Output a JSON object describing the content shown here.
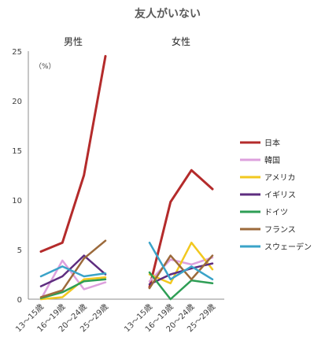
{
  "chart_data": {
    "type": "line",
    "title": "友人がいない",
    "unit_label": "（%）",
    "ylim": [
      0,
      25
    ],
    "yticks": [
      0,
      5,
      10,
      15,
      20,
      25
    ],
    "categories": [
      "13～15歳",
      "16～19歳",
      "20～24歳",
      "25～29歳"
    ],
    "panels": [
      {
        "label": "男性",
        "series": [
          {
            "name": "日本",
            "color": "#B42B2B",
            "values": [
              4.8,
              5.7,
              12.5,
              24.5
            ]
          },
          {
            "name": "韓国",
            "color": "#DDA0DD",
            "values": [
              0.0,
              3.9,
              1.0,
              1.7
            ]
          },
          {
            "name": "アメリカ",
            "color": "#F2C81F",
            "values": [
              0.0,
              0.2,
              2.0,
              2.2
            ]
          },
          {
            "name": "イギリス",
            "color": "#5E2D7F",
            "values": [
              1.3,
              2.3,
              4.4,
              2.5
            ]
          },
          {
            "name": "ドイツ",
            "color": "#2E9E55",
            "values": [
              0.1,
              0.7,
              1.8,
              2.0
            ]
          },
          {
            "name": "フランス",
            "color": "#9C6A3B",
            "values": [
              0.2,
              0.9,
              4.1,
              5.9
            ]
          },
          {
            "name": "スウェーデン",
            "color": "#3AA3C8",
            "values": [
              2.3,
              3.3,
              2.3,
              2.6
            ]
          }
        ]
      },
      {
        "label": "女性",
        "series": [
          {
            "name": "日本",
            "color": "#B42B2B",
            "values": [
              1.2,
              9.8,
              13.0,
              11.1
            ]
          },
          {
            "name": "韓国",
            "color": "#DDA0DD",
            "values": [
              1.8,
              4.0,
              3.5,
              4.2
            ]
          },
          {
            "name": "アメリカ",
            "color": "#F2C81F",
            "values": [
              2.5,
              1.6,
              5.7,
              3.0
            ]
          },
          {
            "name": "イギリス",
            "color": "#5E2D7F",
            "values": [
              1.5,
              2.5,
              3.1,
              3.6
            ]
          },
          {
            "name": "ドイツ",
            "color": "#2E9E55",
            "values": [
              2.7,
              0.0,
              1.9,
              1.6
            ]
          },
          {
            "name": "フランス",
            "color": "#9C6A3B",
            "values": [
              1.1,
              4.4,
              2.0,
              4.4
            ]
          },
          {
            "name": "スウェーデン",
            "color": "#3AA3C8",
            "values": [
              5.7,
              2.0,
              3.3,
              2.0
            ]
          }
        ]
      }
    ],
    "legend": [
      "日本",
      "韓国",
      "アメリカ",
      "イギリス",
      "ドイツ",
      "フランス",
      "スウェーデン"
    ],
    "legend_position": "right",
    "grid": false
  }
}
